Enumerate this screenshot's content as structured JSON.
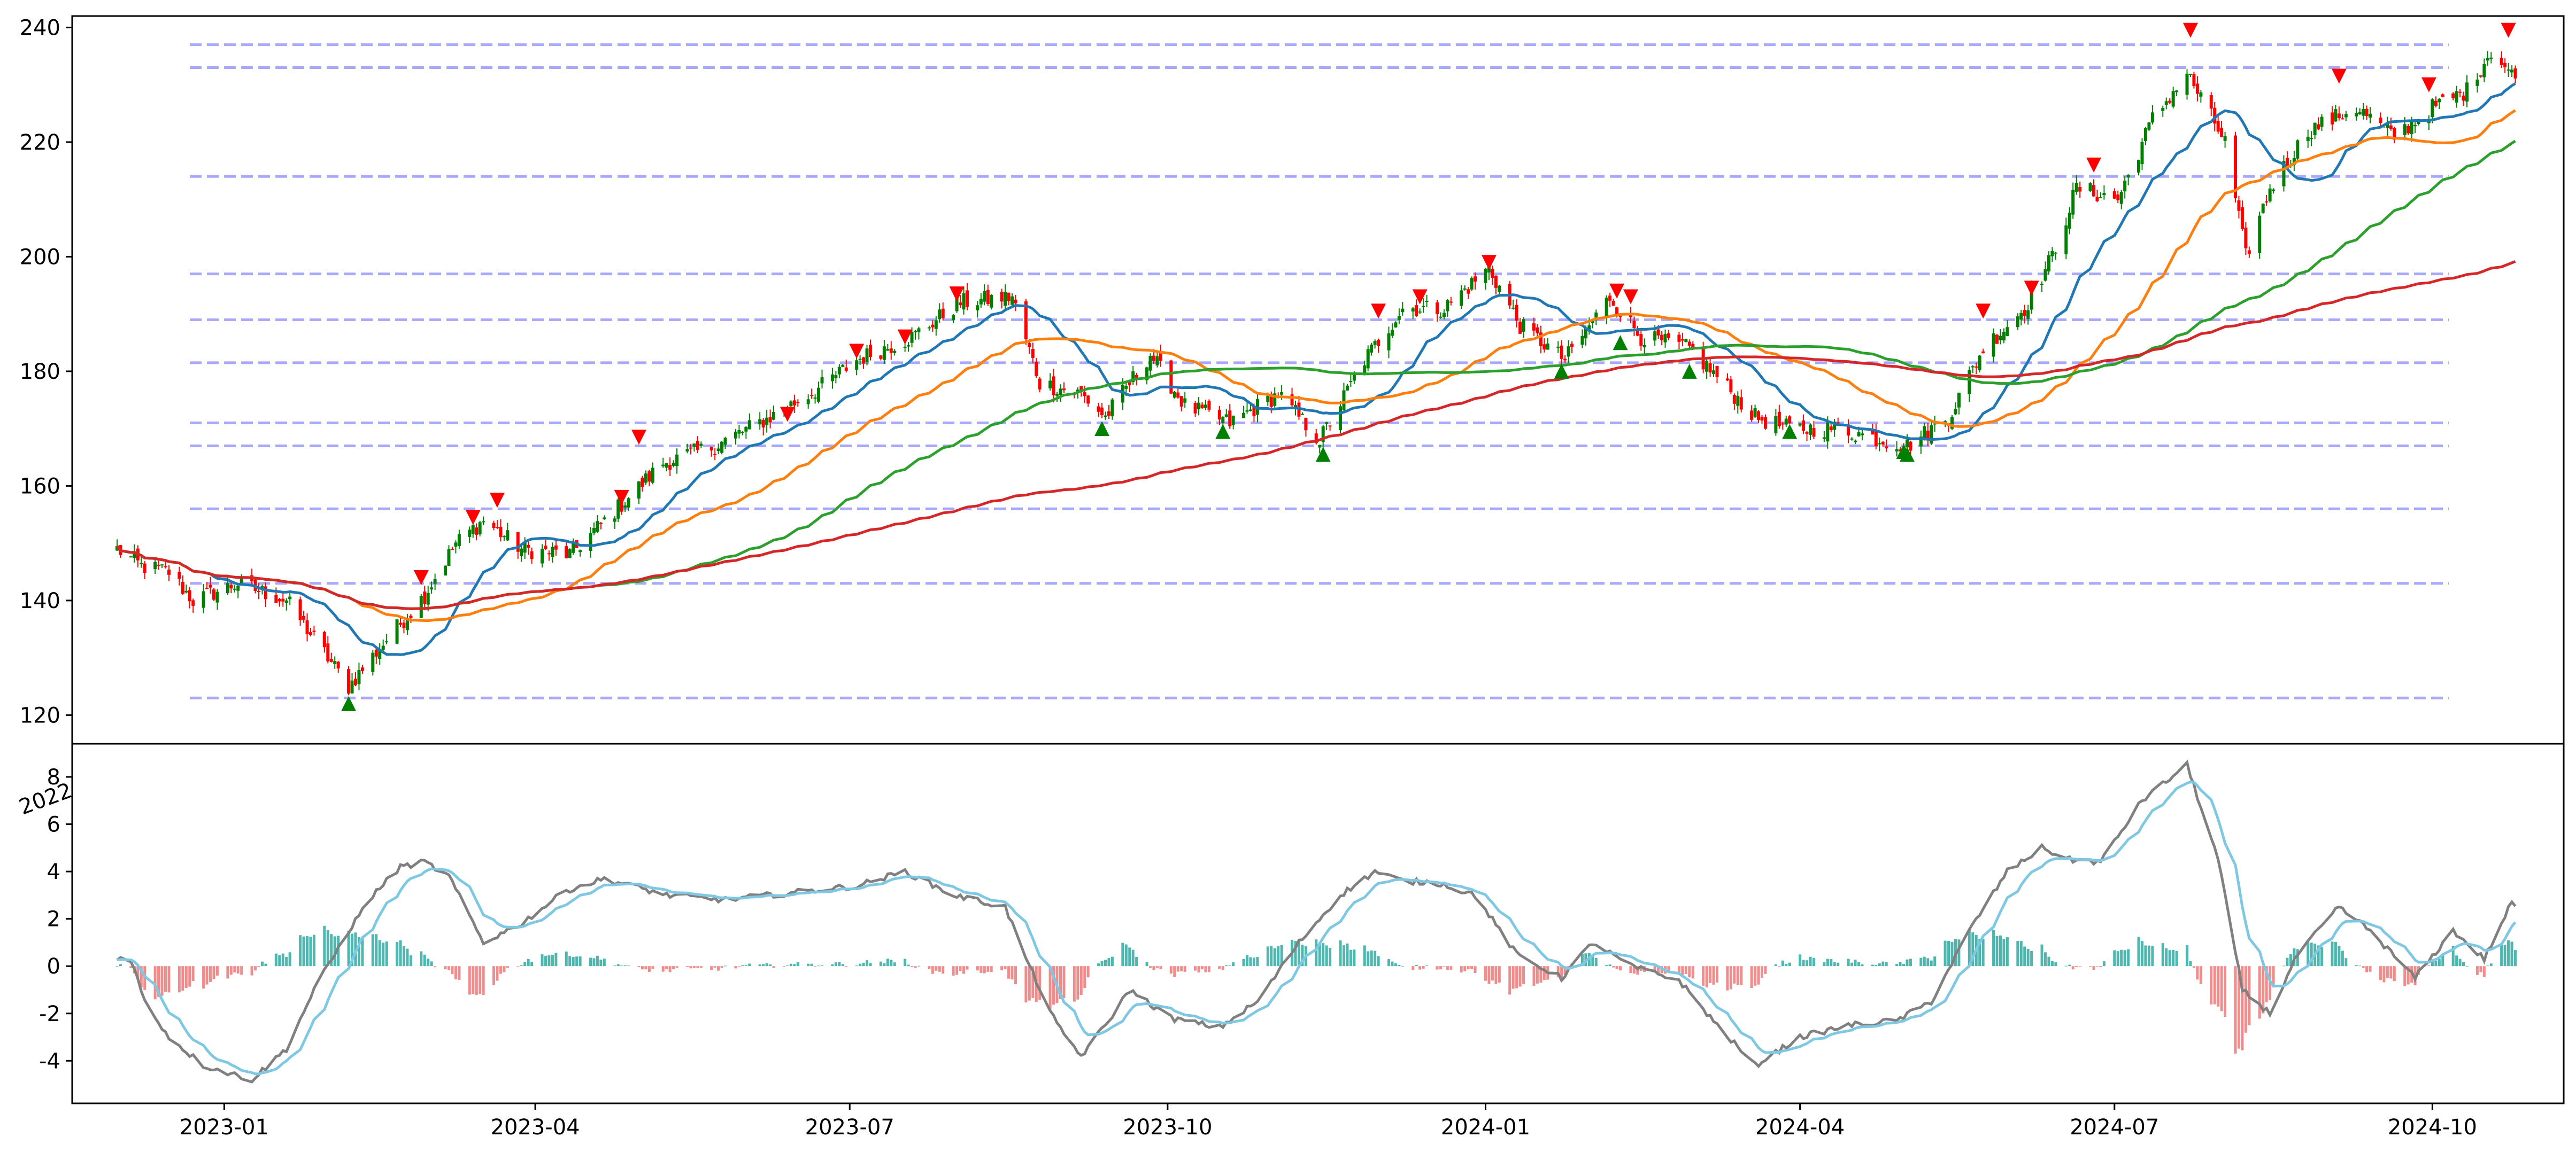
{
  "chart_data": [
    {
      "type": "candlestick",
      "panel": "price",
      "x_range": [
        "2022-11-18",
        "2024-11-08"
      ],
      "ylim": [
        115,
        242
      ],
      "yticks": [
        120,
        140,
        160,
        180,
        200,
        220,
        240
      ],
      "grid": false,
      "legend": "none",
      "colors": {
        "up_candle": "#008000",
        "down_candle": "#ff0000",
        "ma_blue": "#1f77b4",
        "ma_orange": "#ff7f0e",
        "ma_green": "#2ca02c",
        "ma_red": "#d62728",
        "level_line": "#9999ff",
        "buy_marker": "#008000",
        "sell_marker": "#ff0000"
      },
      "horizontal_levels": [
        123,
        143,
        156,
        167,
        171,
        181.5,
        189,
        197,
        214,
        233,
        237
      ],
      "close_anchors": [
        [
          "2022-12-01",
          149
        ],
        [
          "2022-12-08",
          146
        ],
        [
          "2022-12-16",
          145
        ],
        [
          "2022-12-23",
          140
        ],
        [
          "2023-01-05",
          143
        ],
        [
          "2023-01-19",
          140
        ],
        [
          "2023-01-31",
          130
        ],
        [
          "2023-02-06",
          125
        ],
        [
          "2023-02-14",
          131
        ],
        [
          "2023-02-28",
          141
        ],
        [
          "2023-03-09",
          150
        ],
        [
          "2023-03-17",
          154
        ],
        [
          "2023-03-28",
          149
        ],
        [
          "2023-04-11",
          148
        ],
        [
          "2023-04-28",
          158
        ],
        [
          "2023-05-08",
          164
        ],
        [
          "2023-05-23",
          167
        ],
        [
          "2023-06-08",
          172
        ],
        [
          "2023-06-22",
          177
        ],
        [
          "2023-07-03",
          182
        ],
        [
          "2023-07-19",
          186
        ],
        [
          "2023-08-02",
          192
        ],
        [
          "2023-08-17",
          193
        ],
        [
          "2023-08-25",
          178
        ],
        [
          "2023-09-06",
          176
        ],
        [
          "2023-09-13",
          172
        ],
        [
          "2023-09-26",
          183
        ],
        [
          "2023-10-06",
          174
        ],
        [
          "2023-10-19",
          171
        ],
        [
          "2023-11-02",
          176
        ],
        [
          "2023-11-14",
          168
        ],
        [
          "2023-11-27",
          182
        ],
        [
          "2023-12-08",
          191
        ],
        [
          "2023-12-20",
          191
        ],
        [
          "2024-01-02",
          198
        ],
        [
          "2024-01-11",
          188
        ],
        [
          "2024-01-24",
          182
        ],
        [
          "2024-02-06",
          193
        ],
        [
          "2024-02-15",
          186
        ],
        [
          "2024-02-29",
          184
        ],
        [
          "2024-03-08",
          179
        ],
        [
          "2024-03-19",
          172
        ],
        [
          "2024-03-29",
          170
        ],
        [
          "2024-04-12",
          170
        ],
        [
          "2024-04-25",
          168
        ],
        [
          "2024-05-02",
          167
        ],
        [
          "2024-05-14",
          172
        ],
        [
          "2024-05-24",
          184
        ],
        [
          "2024-06-05",
          191
        ],
        [
          "2024-06-13",
          200
        ],
        [
          "2024-06-20",
          212
        ],
        [
          "2024-07-02",
          210
        ],
        [
          "2024-07-12",
          224
        ],
        [
          "2024-07-22",
          232
        ],
        [
          "2024-08-02",
          220
        ],
        [
          "2024-08-08",
          200
        ],
        [
          "2024-08-15",
          212
        ],
        [
          "2024-08-26",
          222
        ],
        [
          "2024-09-09",
          226
        ],
        [
          "2024-09-20",
          221
        ],
        [
          "2024-10-01",
          226
        ],
        [
          "2024-10-11",
          229
        ],
        [
          "2024-10-18",
          236
        ],
        [
          "2024-10-25",
          231
        ]
      ],
      "moving_averages": [
        {
          "color": "ma_blue",
          "window": 20
        },
        {
          "color": "ma_orange",
          "window": 50
        },
        {
          "color": "ma_green",
          "window": 100
        },
        {
          "color": "ma_red",
          "window": 200
        }
      ],
      "buy_signals": [
        [
          "2023-02-06",
          122
        ],
        [
          "2023-09-12",
          170
        ],
        [
          "2023-10-17",
          169.5
        ],
        [
          "2023-11-15",
          165.5
        ],
        [
          "2024-01-23",
          180
        ],
        [
          "2024-02-09",
          185
        ],
        [
          "2024-02-29",
          180
        ],
        [
          "2024-03-29",
          169.5
        ],
        [
          "2024-05-01",
          166
        ],
        [
          "2024-05-02",
          165.5
        ]
      ],
      "sell_signals": [
        [
          "2023-02-27",
          144
        ],
        [
          "2023-03-14",
          154.5
        ],
        [
          "2023-03-21",
          157.5
        ],
        [
          "2023-04-26",
          158
        ],
        [
          "2023-05-01",
          168.5
        ],
        [
          "2023-06-13",
          172.5
        ],
        [
          "2023-07-03",
          183.5
        ],
        [
          "2023-07-17",
          186
        ],
        [
          "2023-08-01",
          193.5
        ],
        [
          "2023-12-01",
          190.5
        ],
        [
          "2023-12-13",
          193
        ],
        [
          "2024-01-02",
          199
        ],
        [
          "2024-02-08",
          194
        ],
        [
          "2024-02-12",
          193
        ],
        [
          "2024-05-24",
          190.5
        ],
        [
          "2024-06-07",
          194.5
        ],
        [
          "2024-06-25",
          216
        ],
        [
          "2024-07-23",
          239.5
        ],
        [
          "2024-09-04",
          231.5
        ],
        [
          "2024-09-30",
          230
        ],
        [
          "2024-10-23",
          239.5
        ]
      ]
    },
    {
      "type": "macd",
      "panel": "indicator",
      "x_range": [
        "2022-11-18",
        "2024-11-08"
      ],
      "ylim": [
        -5.8,
        9.4
      ],
      "yticks": [
        -4,
        -2,
        0,
        2,
        4,
        6,
        8
      ],
      "xtick_labels": [
        "2023-01",
        "2023-04",
        "2023-07",
        "2023-10",
        "2024-01",
        "2024-04",
        "2024-07",
        "2024-10"
      ],
      "xtick_dates": [
        "2023-01-01",
        "2023-04-01",
        "2023-07-01",
        "2023-10-01",
        "2024-01-01",
        "2024-04-01",
        "2024-07-01",
        "2024-10-01"
      ],
      "clipped_label": "2022",
      "colors": {
        "macd_line": "#808080",
        "signal_line": "#7ec8e3",
        "hist_positive": "#3aaea5",
        "hist_negative": "#f08080"
      },
      "macd_anchors": [
        [
          "2022-11-28",
          0.4
        ],
        [
          "2022-12-05",
          0.3
        ],
        [
          "2022-12-09",
          -1.5
        ],
        [
          "2022-12-16",
          -3.0
        ],
        [
          "2022-12-26",
          -4.2
        ],
        [
          "2023-01-09",
          -4.8
        ],
        [
          "2023-01-19",
          -3.5
        ],
        [
          "2023-01-27",
          -1.0
        ],
        [
          "2023-02-06",
          1.5
        ],
        [
          "2023-02-13",
          3.0
        ],
        [
          "2023-02-21",
          4.2
        ],
        [
          "2023-02-28",
          4.4
        ],
        [
          "2023-03-07",
          3.8
        ],
        [
          "2023-03-17",
          1.0
        ],
        [
          "2023-03-28",
          1.8
        ],
        [
          "2023-04-10",
          3.2
        ],
        [
          "2023-04-21",
          3.7
        ],
        [
          "2023-05-09",
          3.0
        ],
        [
          "2023-05-26",
          2.8
        ],
        [
          "2023-06-14",
          3.1
        ],
        [
          "2023-07-03",
          3.4
        ],
        [
          "2023-07-17",
          4.0
        ],
        [
          "2023-07-31",
          3.0
        ],
        [
          "2023-08-15",
          2.5
        ],
        [
          "2023-08-22",
          0.0
        ],
        [
          "2023-08-30",
          -2.5
        ],
        [
          "2023-09-06",
          -3.8
        ],
        [
          "2023-09-13",
          -2.5
        ],
        [
          "2023-09-20",
          -1.0
        ],
        [
          "2023-10-02",
          -2.2
        ],
        [
          "2023-10-16",
          -2.6
        ],
        [
          "2023-10-27",
          -1.5
        ],
        [
          "2023-11-08",
          1.0
        ],
        [
          "2023-11-20",
          3.0
        ],
        [
          "2023-11-30",
          4.0
        ],
        [
          "2023-12-08",
          3.6
        ],
        [
          "2023-12-19",
          3.5
        ],
        [
          "2023-12-29",
          3.0
        ],
        [
          "2024-01-10",
          0.5
        ],
        [
          "2024-01-23",
          -0.5
        ],
        [
          "2024-02-01",
          1.0
        ],
        [
          "2024-02-12",
          0.0
        ],
        [
          "2024-02-26",
          -0.6
        ],
        [
          "2024-03-08",
          -2.5
        ],
        [
          "2024-03-19",
          -4.2
        ],
        [
          "2024-04-01",
          -3.0
        ],
        [
          "2024-04-15",
          -2.5
        ],
        [
          "2024-04-29",
          -2.3
        ],
        [
          "2024-05-09",
          -1.5
        ],
        [
          "2024-05-20",
          1.5
        ],
        [
          "2024-05-31",
          4.0
        ],
        [
          "2024-06-10",
          5.0
        ],
        [
          "2024-06-18",
          4.5
        ],
        [
          "2024-06-27",
          4.4
        ],
        [
          "2024-07-09",
          7.0
        ],
        [
          "2024-07-22",
          8.5
        ],
        [
          "2024-07-31",
          4.5
        ],
        [
          "2024-08-07",
          -1.0
        ],
        [
          "2024-08-15",
          -2.0
        ],
        [
          "2024-08-23",
          0.5
        ],
        [
          "2024-09-04",
          2.5
        ],
        [
          "2024-09-13",
          1.5
        ],
        [
          "2024-09-26",
          -0.5
        ],
        [
          "2024-10-07",
          1.5
        ],
        [
          "2024-10-16",
          0.3
        ],
        [
          "2024-10-24",
          2.7
        ],
        [
          "2024-10-29",
          2.0
        ]
      ],
      "signal_window": 9
    }
  ]
}
